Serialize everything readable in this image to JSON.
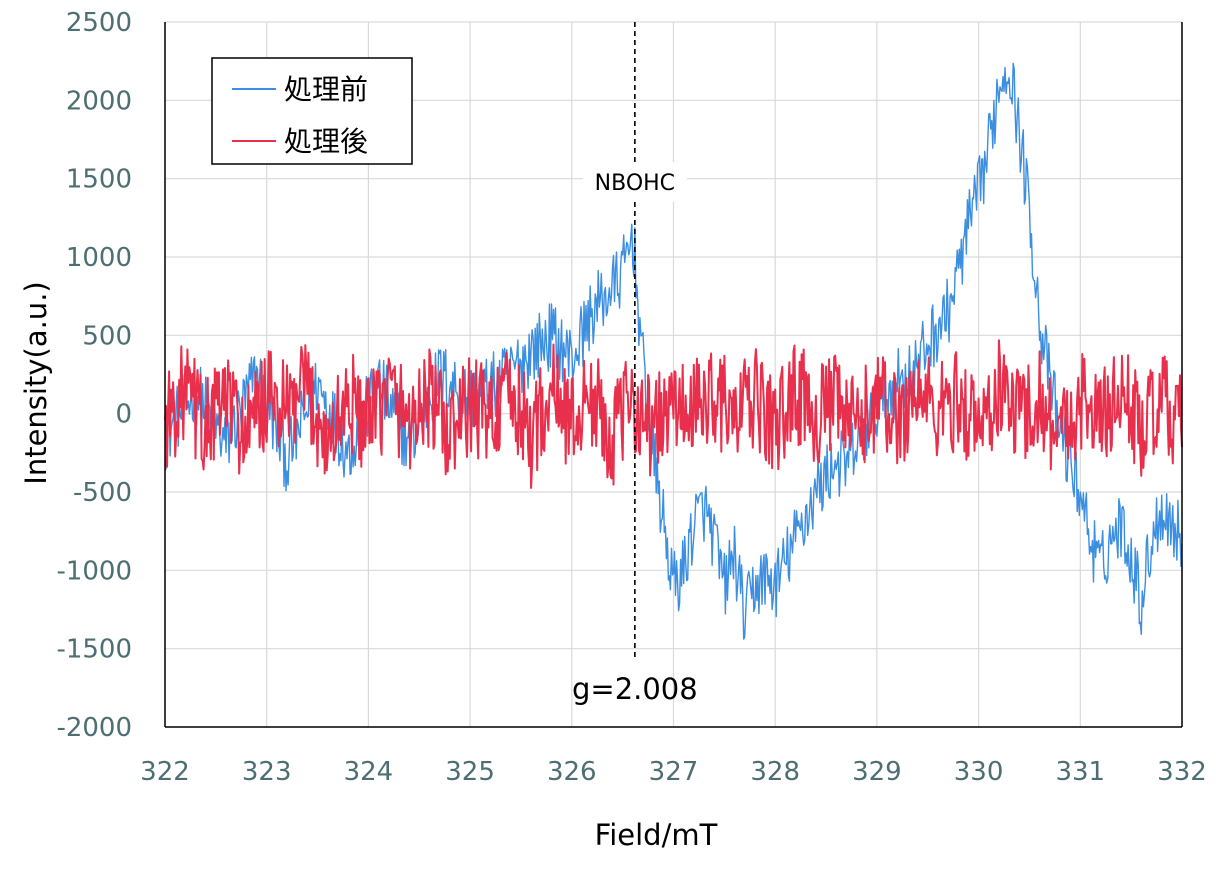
{
  "chart_data": {
    "type": "line",
    "title": "",
    "xlabel": "Field/mT",
    "ylabel": "Intensity(a.u.)",
    "xlim": [
      322,
      332
    ],
    "ylim": [
      -2000,
      2500
    ],
    "x_ticks": [
      "322",
      "323",
      "324",
      "325",
      "326",
      "327",
      "328",
      "329",
      "330",
      "331",
      "332"
    ],
    "y_ticks": [
      "2500",
      "2000",
      "1500",
      "1000",
      "500",
      "0",
      "-500",
      "-1000",
      "-1500",
      "-2000"
    ],
    "grid": true,
    "legend_position": "top-left",
    "annotations": {
      "marker_label": "NBOHC",
      "marker_x": 326.62,
      "g_label": "g=2.008"
    },
    "series": [
      {
        "name": "処理前",
        "color": "#3b8ee0",
        "points": [
          [
            322.0,
            -150
          ],
          [
            322.3,
            150
          ],
          [
            322.6,
            -200
          ],
          [
            322.9,
            250
          ],
          [
            323.2,
            -300
          ],
          [
            323.5,
            200
          ],
          [
            323.8,
            -250
          ],
          [
            324.1,
            200
          ],
          [
            324.4,
            -200
          ],
          [
            324.7,
            250
          ],
          [
            325.0,
            100
          ],
          [
            325.3,
            200
          ],
          [
            325.6,
            400
          ],
          [
            325.8,
            500
          ],
          [
            326.0,
            350
          ],
          [
            326.2,
            650
          ],
          [
            326.4,
            800
          ],
          [
            326.5,
            900
          ],
          [
            326.6,
            1150
          ],
          [
            326.7,
            300
          ],
          [
            326.8,
            -250
          ],
          [
            326.9,
            -700
          ],
          [
            327.0,
            -1100
          ],
          [
            327.1,
            -1000
          ],
          [
            327.2,
            -700
          ],
          [
            327.3,
            -600
          ],
          [
            327.4,
            -800
          ],
          [
            327.5,
            -1100
          ],
          [
            327.6,
            -900
          ],
          [
            327.7,
            -1300
          ],
          [
            327.8,
            -1100
          ],
          [
            327.9,
            -1050
          ],
          [
            328.0,
            -1100
          ],
          [
            328.1,
            -950
          ],
          [
            328.2,
            -800
          ],
          [
            328.3,
            -650
          ],
          [
            328.4,
            -500
          ],
          [
            328.5,
            -400
          ],
          [
            328.6,
            -300
          ],
          [
            328.7,
            -350
          ],
          [
            328.8,
            -200
          ],
          [
            328.9,
            -100
          ],
          [
            329.0,
            50
          ],
          [
            329.2,
            200
          ],
          [
            329.4,
            300
          ],
          [
            329.5,
            450
          ],
          [
            329.6,
            550
          ],
          [
            329.7,
            650
          ],
          [
            329.8,
            900
          ],
          [
            329.9,
            1200
          ],
          [
            330.0,
            1400
          ],
          [
            330.1,
            1700
          ],
          [
            330.2,
            2100
          ],
          [
            330.3,
            2250
          ],
          [
            330.4,
            1800
          ],
          [
            330.5,
            1300
          ],
          [
            330.6,
            600
          ],
          [
            330.7,
            200
          ],
          [
            330.8,
            -100
          ],
          [
            330.9,
            -300
          ],
          [
            331.0,
            -500
          ],
          [
            331.1,
            -800
          ],
          [
            331.2,
            -1000
          ],
          [
            331.3,
            -800
          ],
          [
            331.4,
            -700
          ],
          [
            331.5,
            -900
          ],
          [
            331.6,
            -1200
          ],
          [
            331.7,
            -800
          ],
          [
            331.8,
            -600
          ],
          [
            331.9,
            -700
          ],
          [
            332.0,
            -800
          ]
        ]
      },
      {
        "name": "処理後",
        "color": "#e8304d",
        "points": [
          [
            322.0,
            -50
          ],
          [
            322.2,
            150
          ],
          [
            322.4,
            -100
          ],
          [
            322.6,
            100
          ],
          [
            322.8,
            -150
          ],
          [
            323.0,
            100
          ],
          [
            323.2,
            0
          ],
          [
            323.4,
            150
          ],
          [
            323.6,
            -200
          ],
          [
            323.8,
            100
          ],
          [
            324.0,
            -100
          ],
          [
            324.2,
            150
          ],
          [
            324.4,
            -50
          ],
          [
            324.6,
            100
          ],
          [
            324.8,
            -150
          ],
          [
            325.0,
            50
          ],
          [
            325.2,
            0
          ],
          [
            325.4,
            100
          ],
          [
            325.6,
            -150
          ],
          [
            325.8,
            150
          ],
          [
            326.0,
            -50
          ],
          [
            326.2,
            100
          ],
          [
            326.4,
            -150
          ],
          [
            326.6,
            100
          ],
          [
            326.8,
            -100
          ],
          [
            327.0,
            50
          ],
          [
            327.2,
            0
          ],
          [
            327.4,
            150
          ],
          [
            327.6,
            -50
          ],
          [
            327.8,
            100
          ],
          [
            328.0,
            -100
          ],
          [
            328.2,
            150
          ],
          [
            328.4,
            0
          ],
          [
            328.6,
            50
          ],
          [
            328.8,
            -100
          ],
          [
            329.0,
            100
          ],
          [
            329.2,
            -50
          ],
          [
            329.4,
            150
          ],
          [
            329.6,
            0
          ],
          [
            329.8,
            100
          ],
          [
            330.0,
            -100
          ],
          [
            330.2,
            150
          ],
          [
            330.4,
            0
          ],
          [
            330.6,
            100
          ],
          [
            330.8,
            -150
          ],
          [
            331.0,
            100
          ],
          [
            331.2,
            -50
          ],
          [
            331.4,
            150
          ],
          [
            331.6,
            -100
          ],
          [
            331.8,
            50
          ],
          [
            332.0,
            -50
          ]
        ]
      }
    ]
  }
}
